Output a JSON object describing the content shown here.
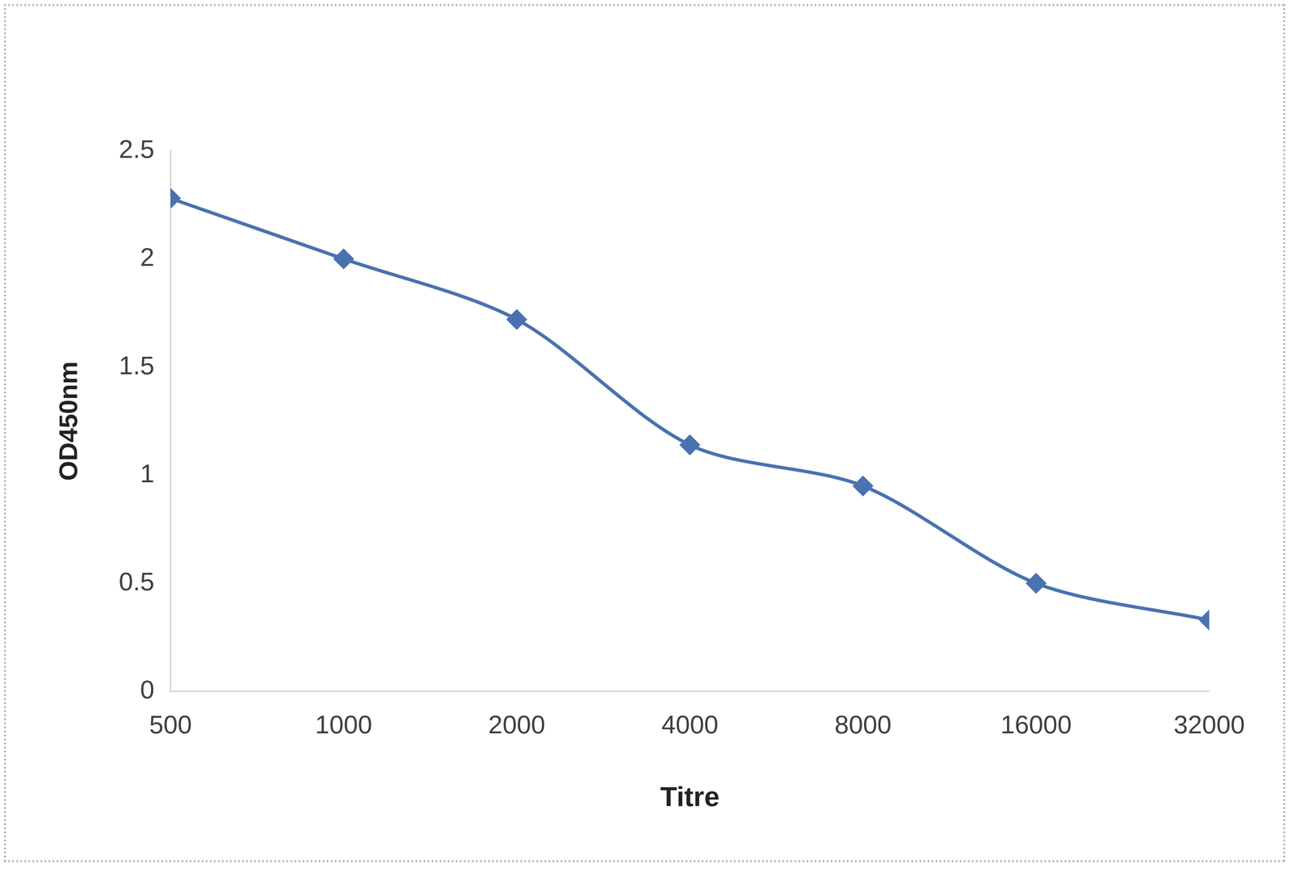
{
  "chart_data": {
    "type": "line",
    "x_label": "Titre",
    "y_label": "OD450nm",
    "categories": [
      "500",
      "1000",
      "2000",
      "4000",
      "8000",
      "16000",
      "32000"
    ],
    "series": [
      {
        "name": "OD450nm",
        "color": "#4a72b0",
        "marker": "diamond",
        "values": [
          2.28,
          2.0,
          1.72,
          1.14,
          0.95,
          0.5,
          0.33
        ]
      }
    ],
    "ylim": [
      0,
      2.5
    ],
    "yticks": [
      0,
      0.5,
      1,
      1.5,
      2,
      2.5
    ],
    "grid": false
  }
}
